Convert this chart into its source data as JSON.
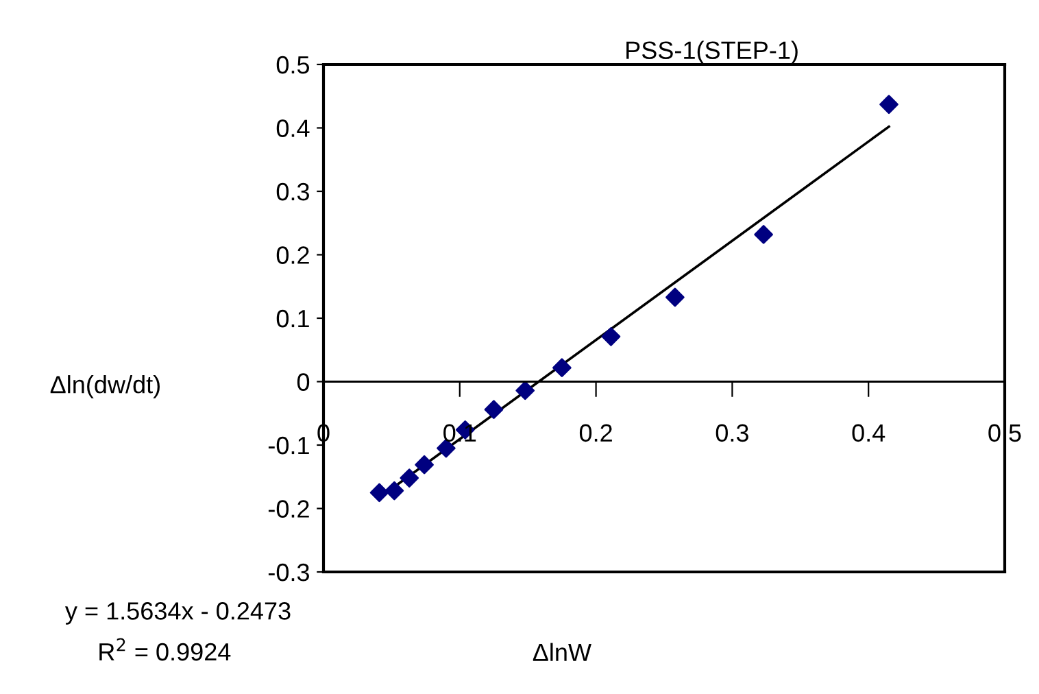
{
  "chart_data": {
    "type": "scatter",
    "title": "PSS-1(STEP-1)",
    "xlabel": "ΔlnW",
    "ylabel": "Δln(dw/dt)",
    "annotations": [
      "y = 1.5634x - 0.2473",
      "R$^{2}$ = 0.9924"
    ],
    "series": [
      {
        "color": "#000080",
        "marker": "diamond",
        "x": [
          0.041,
          0.052,
          0.063,
          0.074,
          0.09,
          0.104,
          0.125,
          0.148,
          0.175,
          0.211,
          0.258,
          0.323,
          0.415
        ],
        "values": [
          -0.175,
          -0.172,
          -0.152,
          -0.131,
          -0.105,
          -0.076,
          -0.044,
          -0.014,
          0.022,
          0.071,
          0.133,
          0.232,
          0.437
        ]
      },
      {
        "type": "line",
        "color": "#000000",
        "marker": "none",
        "line_style": "solid",
        "x": [
          0.041,
          0.415
        ],
        "values": [
          -0.183,
          0.402
        ]
      }
    ],
    "xlim": [
      0,
      0.5
    ],
    "xticks": [
      0,
      0.1,
      0.2,
      0.3,
      0.4,
      0.5
    ],
    "ylim": [
      -0.3,
      0.5
    ],
    "yticks": [
      -0.3,
      -0.2,
      -0.1,
      0,
      0.1,
      0.2,
      0.3,
      0.4,
      0.5
    ],
    "grid": false,
    "legend": false
  }
}
